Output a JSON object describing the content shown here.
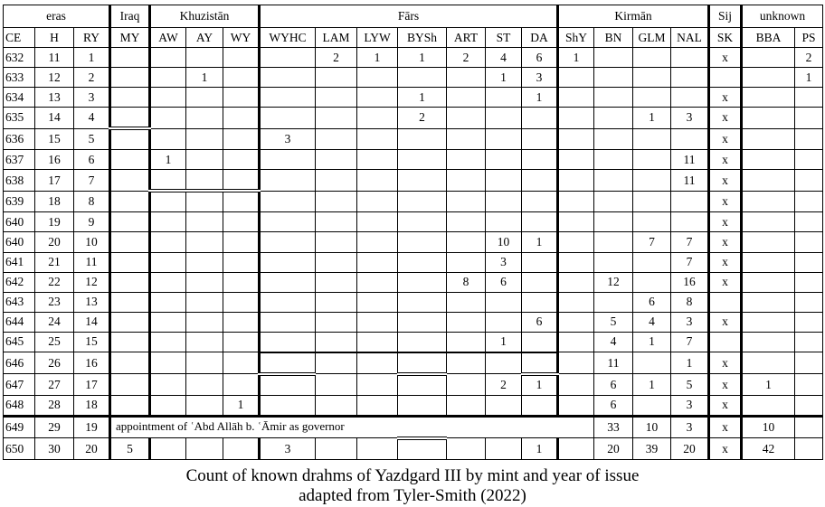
{
  "table": {
    "groups": [
      {
        "label": "eras",
        "span": 3
      },
      {
        "label": "Iraq",
        "span": 1
      },
      {
        "label": "Khuzistān",
        "span": 3
      },
      {
        "label": "Fārs",
        "span": 7
      },
      {
        "label": "Kirmān",
        "span": 4
      },
      {
        "label": "Sij",
        "span": 1
      },
      {
        "label": "unknown",
        "span": 2
      }
    ],
    "columns": [
      "CE",
      "H",
      "RY",
      "MY",
      "AW",
      "AY",
      "WY",
      "WYHC",
      "LAM",
      "LYW",
      "BYSh",
      "ART",
      "ST",
      "DA",
      "ShY",
      "BN",
      "GLM",
      "NAL",
      "SK",
      "BBA",
      "PS"
    ],
    "rows": [
      [
        "632",
        "11",
        "1",
        "",
        "",
        "",
        "",
        "",
        "2",
        "1",
        "1",
        "2",
        "4",
        "6",
        "1",
        "",
        "",
        "",
        "x",
        "",
        "2"
      ],
      [
        "633",
        "12",
        "2",
        "",
        "",
        "1",
        "",
        "",
        "",
        "",
        "",
        "",
        "1",
        "3",
        "",
        "",
        "",
        "",
        "",
        "",
        "1"
      ],
      [
        "634",
        "13",
        "3",
        "",
        "",
        "",
        "",
        "",
        "",
        "",
        "1",
        "",
        "",
        "1",
        "",
        "",
        "",
        "",
        "x",
        "",
        ""
      ],
      [
        "635",
        "14",
        "4",
        "",
        "",
        "",
        "",
        "",
        "",
        "",
        "2",
        "",
        "",
        "",
        "",
        "",
        "1",
        "3",
        "x",
        "",
        ""
      ],
      [
        "636",
        "15",
        "5",
        "",
        "",
        "",
        "",
        "3",
        "",
        "",
        "",
        "",
        "",
        "",
        "",
        "",
        "",
        "",
        "x",
        "",
        ""
      ],
      [
        "637",
        "16",
        "6",
        "",
        "1",
        "",
        "",
        "",
        "",
        "",
        "",
        "",
        "",
        "",
        "",
        "",
        "",
        "11",
        "x",
        "",
        ""
      ],
      [
        "638",
        "17",
        "7",
        "",
        "",
        "",
        "",
        "",
        "",
        "",
        "",
        "",
        "",
        "",
        "",
        "",
        "",
        "11",
        "x",
        "",
        ""
      ],
      [
        "639",
        "18",
        "8",
        "",
        "",
        "",
        "",
        "",
        "",
        "",
        "",
        "",
        "",
        "",
        "",
        "",
        "",
        "",
        "x",
        "",
        ""
      ],
      [
        "640",
        "19",
        "9",
        "",
        "",
        "",
        "",
        "",
        "",
        "",
        "",
        "",
        "",
        "",
        "",
        "",
        "",
        "",
        "x",
        "",
        ""
      ],
      [
        "640",
        "20",
        "10",
        "",
        "",
        "",
        "",
        "",
        "",
        "",
        "",
        "",
        "10",
        "1",
        "",
        "",
        "7",
        "7",
        "x",
        "",
        ""
      ],
      [
        "641",
        "21",
        "11",
        "",
        "",
        "",
        "",
        "",
        "",
        "",
        "",
        "",
        "3",
        "",
        "",
        "",
        "",
        "7",
        "x",
        "",
        ""
      ],
      [
        "642",
        "22",
        "12",
        "",
        "",
        "",
        "",
        "",
        "",
        "",
        "",
        "8",
        "6",
        "",
        "",
        "12",
        "",
        "16",
        "x",
        "",
        ""
      ],
      [
        "643",
        "23",
        "13",
        "",
        "",
        "",
        "",
        "",
        "",
        "",
        "",
        "",
        "",
        "",
        "",
        "",
        "6",
        "8",
        "",
        "",
        ""
      ],
      [
        "644",
        "24",
        "14",
        "",
        "",
        "",
        "",
        "",
        "",
        "",
        "",
        "",
        "",
        "6",
        "",
        "5",
        "4",
        "3",
        "x",
        "",
        ""
      ],
      [
        "645",
        "25",
        "15",
        "",
        "",
        "",
        "",
        "",
        "",
        "",
        "",
        "",
        "1",
        "",
        "",
        "4",
        "1",
        "7",
        "",
        "",
        ""
      ],
      [
        "646",
        "26",
        "16",
        "",
        "",
        "",
        "",
        "",
        "",
        "",
        "",
        "",
        "",
        "",
        "",
        "11",
        "",
        "1",
        "x",
        "",
        ""
      ],
      [
        "647",
        "27",
        "17",
        "",
        "",
        "",
        "",
        "",
        "",
        "",
        "",
        "",
        "2",
        "1",
        "",
        "6",
        "1",
        "5",
        "x",
        "1",
        ""
      ],
      [
        "648",
        "28",
        "18",
        "",
        "",
        "",
        "1",
        "",
        "",
        "",
        "",
        "",
        "",
        "",
        "",
        "6",
        "",
        "3",
        "x",
        "",
        ""
      ]
    ],
    "row_649": {
      "ce": "649",
      "h": "29",
      "ry": "19",
      "note": "appointment of ʿAbd Allāh b. ʿĀmir as governor",
      "BN": "33",
      "GLM": "10",
      "NAL": "3",
      "SK": "x",
      "BBA": "10",
      "PS": ""
    },
    "row_650": [
      "650",
      "30",
      "20",
      "5",
      "",
      "",
      "",
      "3",
      "",
      "",
      "",
      "",
      "",
      "1",
      "",
      "20",
      "39",
      "20",
      "x",
      "42",
      ""
    ]
  },
  "caption": {
    "line1": "Count of known drahms of Yazdgard III by mint and year of issue",
    "line2": "adapted from Tyler-Smith (2022)"
  }
}
